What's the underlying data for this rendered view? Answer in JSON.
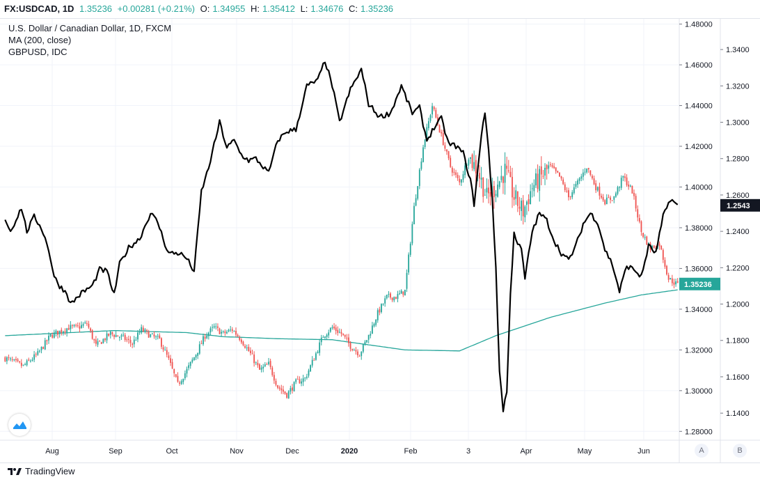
{
  "header": {
    "symbol": "FX:USDCAD, 1D",
    "last": "1.35236",
    "change": "+0.00281 (+0.21%)",
    "o_label": "O:",
    "o_val": "1.34955",
    "h_label": "H:",
    "h_val": "1.35412",
    "l_label": "L:",
    "l_val": "1.34676",
    "c_label": "C:",
    "c_val": "1.35236"
  },
  "legend": {
    "main": "U.S. Dollar / Canadian Dollar, 1D, FXCM",
    "ma": "MA (200, close)",
    "overlay": "GBPUSD, IDC"
  },
  "footer": {
    "brand": "TradingView",
    "scale_a": "A",
    "scale_b": "B"
  },
  "colors": {
    "up": "#26a69a",
    "down": "#ef5350",
    "ma": "#26a69a",
    "overlay": "#000000",
    "grid": "#f0f3fa",
    "last_price_bg": "#26a69a",
    "overlay_price_bg": "#131722"
  },
  "chart_data": {
    "type": "candlestick",
    "title": "U.S. Dollar / Canadian Dollar, 1D, FXCM",
    "x_ticks": [
      "Aug",
      "Sep",
      "Oct",
      "Nov",
      "Dec",
      "2020",
      "Feb",
      "3",
      "Apr",
      "May",
      "Jun"
    ],
    "right_axis": {
      "ticks": [
        "1.48000",
        "1.46000",
        "1.44000",
        "1.42000",
        "1.40000",
        "1.38000",
        "1.36000",
        "1.34000",
        "1.32000",
        "1.30000",
        "1.28000"
      ],
      "ylim": [
        1.276,
        1.4826
      ],
      "last_price_label": "1.35236"
    },
    "left_axis": {
      "ticks": [
        "1.3400",
        "1.3200",
        "1.3000",
        "1.2800",
        "1.2600",
        "1.2400",
        "1.2200",
        "1.2000",
        "1.1800",
        "1.1600",
        "1.1400"
      ],
      "ylim": [
        1.1255,
        1.3569
      ],
      "last_price_label": "1.2543"
    },
    "series": [
      {
        "name": "FX:USDCAD",
        "kind": "candles",
        "anchors": [
          [
            0,
            1.316
          ],
          [
            10,
            1.312
          ],
          [
            18,
            1.318
          ],
          [
            25,
            1.327
          ],
          [
            35,
            1.331
          ],
          [
            40,
            1.331
          ],
          [
            45,
            1.333
          ],
          [
            50,
            1.322
          ],
          [
            58,
            1.328
          ],
          [
            65,
            1.326
          ],
          [
            70,
            1.323
          ],
          [
            75,
            1.33
          ],
          [
            80,
            1.327
          ],
          [
            85,
            1.325
          ],
          [
            90,
            1.315
          ],
          [
            95,
            1.303
          ],
          [
            100,
            1.31
          ],
          [
            105,
            1.318
          ],
          [
            110,
            1.327
          ],
          [
            115,
            1.331
          ],
          [
            120,
            1.328
          ],
          [
            125,
            1.33
          ],
          [
            130,
            1.325
          ],
          [
            135,
            1.318
          ],
          [
            140,
            1.31
          ],
          [
            145,
            1.313
          ],
          [
            150,
            1.302
          ],
          [
            155,
            1.298
          ],
          [
            160,
            1.304
          ],
          [
            165,
            1.306
          ],
          [
            170,
            1.316
          ],
          [
            175,
            1.327
          ],
          [
            180,
            1.331
          ],
          [
            185,
            1.328
          ],
          [
            190,
            1.322
          ],
          [
            195,
            1.318
          ],
          [
            200,
            1.327
          ],
          [
            205,
            1.338
          ],
          [
            210,
            1.346
          ],
          [
            215,
            1.346
          ],
          [
            220,
            1.349
          ],
          [
            225,
            1.39
          ],
          [
            230,
            1.42
          ],
          [
            235,
            1.44
          ],
          [
            240,
            1.425
          ],
          [
            245,
            1.41
          ],
          [
            250,
            1.402
          ],
          [
            255,
            1.415
          ],
          [
            260,
            1.408
          ],
          [
            265,
            1.395
          ],
          [
            270,
            1.4
          ],
          [
            275,
            1.408
          ],
          [
            280,
            1.395
          ],
          [
            285,
            1.388
          ],
          [
            290,
            1.4
          ],
          [
            295,
            1.405
          ],
          [
            300,
            1.41
          ],
          [
            305,
            1.405
          ],
          [
            310,
            1.395
          ],
          [
            315,
            1.402
          ],
          [
            320,
            1.41
          ],
          [
            325,
            1.4
          ],
          [
            330,
            1.393
          ],
          [
            335,
            1.395
          ],
          [
            340,
            1.405
          ],
          [
            345,
            1.398
          ],
          [
            350,
            1.378
          ],
          [
            355,
            1.37
          ],
          [
            360,
            1.372
          ],
          [
            365,
            1.355
          ],
          [
            370,
            1.352
          ]
        ]
      },
      {
        "name": "MA (200, close)",
        "kind": "line",
        "anchors": [
          [
            0,
            1.327
          ],
          [
            60,
            1.3295
          ],
          [
            100,
            1.3285
          ],
          [
            120,
            1.3265
          ],
          [
            150,
            1.3255
          ],
          [
            180,
            1.325
          ],
          [
            220,
            1.32
          ],
          [
            250,
            1.3195
          ],
          [
            270,
            1.327
          ],
          [
            300,
            1.336
          ],
          [
            330,
            1.343
          ],
          [
            350,
            1.347
          ],
          [
            370,
            1.3495
          ]
        ]
      },
      {
        "name": "GBPUSD, IDC",
        "kind": "line",
        "anchors": [
          [
            0,
            1.247
          ],
          [
            3,
            1.24
          ],
          [
            9,
            1.253
          ],
          [
            12,
            1.24
          ],
          [
            16,
            1.248
          ],
          [
            20,
            1.242
          ],
          [
            24,
            1.23
          ],
          [
            27,
            1.215
          ],
          [
            30,
            1.21
          ],
          [
            34,
            1.206
          ],
          [
            36,
            1.2
          ],
          [
            42,
            1.206
          ],
          [
            48,
            1.21
          ],
          [
            52,
            1.219
          ],
          [
            56,
            1.218
          ],
          [
            60,
            1.205
          ],
          [
            63,
            1.222
          ],
          [
            68,
            1.231
          ],
          [
            74,
            1.236
          ],
          [
            80,
            1.25
          ],
          [
            84,
            1.245
          ],
          [
            88,
            1.233
          ],
          [
            90,
            1.228
          ],
          [
            96,
            1.228
          ],
          [
            100,
            1.225
          ],
          [
            104,
            1.218
          ],
          [
            108,
            1.262
          ],
          [
            112,
            1.275
          ],
          [
            118,
            1.3
          ],
          [
            122,
            1.286
          ],
          [
            126,
            1.29
          ],
          [
            130,
            1.282
          ],
          [
            134,
            1.279
          ],
          [
            138,
            1.28
          ],
          [
            145,
            1.272
          ],
          [
            150,
            1.29
          ],
          [
            155,
            1.295
          ],
          [
            160,
            1.296
          ],
          [
            166,
            1.32
          ],
          [
            172,
            1.323
          ],
          [
            176,
            1.334
          ],
          [
            180,
            1.32
          ],
          [
            184,
            1.3
          ],
          [
            190,
            1.318
          ],
          [
            196,
            1.329
          ],
          [
            200,
            1.31
          ],
          [
            206,
            1.303
          ],
          [
            212,
            1.305
          ],
          [
            218,
            1.32
          ],
          [
            224,
            1.305
          ],
          [
            228,
            1.308
          ],
          [
            232,
            1.29
          ],
          [
            236,
            1.297
          ],
          [
            240,
            1.302
          ],
          [
            244,
            1.288
          ],
          [
            248,
            1.287
          ],
          [
            252,
            1.283
          ],
          [
            256,
            1.268
          ],
          [
            258,
            1.255
          ],
          [
            262,
            1.292
          ],
          [
            264,
            1.306
          ],
          [
            266,
            1.285
          ],
          [
            268,
            1.257
          ],
          [
            270,
            1.22
          ],
          [
            272,
            1.163
          ],
          [
            274,
            1.142
          ],
          [
            276,
            1.152
          ],
          [
            278,
            1.205
          ],
          [
            280,
            1.24
          ],
          [
            282,
            1.233
          ],
          [
            284,
            1.23
          ],
          [
            286,
            1.214
          ],
          [
            290,
            1.24
          ],
          [
            294,
            1.25
          ],
          [
            298,
            1.246
          ],
          [
            302,
            1.235
          ],
          [
            306,
            1.228
          ],
          [
            310,
            1.224
          ],
          [
            314,
            1.232
          ],
          [
            318,
            1.244
          ],
          [
            322,
            1.25
          ],
          [
            326,
            1.245
          ],
          [
            330,
            1.23
          ],
          [
            334,
            1.222
          ],
          [
            338,
            1.207
          ],
          [
            342,
            1.221
          ],
          [
            346,
            1.219
          ],
          [
            350,
            1.215
          ],
          [
            354,
            1.232
          ],
          [
            358,
            1.228
          ],
          [
            362,
            1.248
          ],
          [
            366,
            1.258
          ],
          [
            370,
            1.254
          ]
        ]
      }
    ],
    "grid": true,
    "legend": "top-left"
  }
}
